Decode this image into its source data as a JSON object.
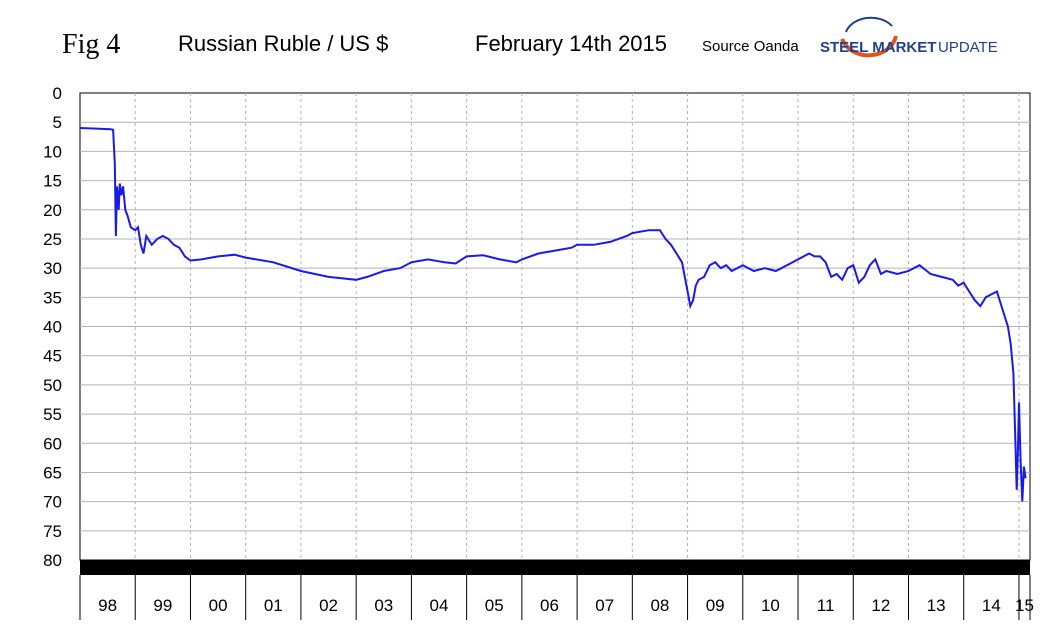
{
  "header": {
    "fig_label": "Fig 4",
    "title": "Russian Ruble / US $",
    "date": "February 14th 2015",
    "source": "Source Oanda",
    "logo": {
      "main": "STEEL MARKET",
      "sub": "UPDATE"
    }
  },
  "colors": {
    "series": "#1a1ae6",
    "grid": "#b4b4b4",
    "logo_blue": "#1f3f8f",
    "logo_orange": "#e0531c"
  },
  "chart_data": {
    "type": "line",
    "title": "Russian Ruble / US $",
    "xlabel": "",
    "ylabel": "",
    "y_inverted": true,
    "ylim": [
      0,
      80
    ],
    "yticks": [
      0,
      5,
      10,
      15,
      20,
      25,
      30,
      35,
      40,
      45,
      50,
      55,
      60,
      65,
      70,
      75,
      80
    ],
    "ytick_labels": [
      "0",
      "5",
      "10",
      "15",
      "20",
      "25",
      "30",
      "35",
      "40",
      "45",
      "50",
      "55",
      "60",
      "65",
      "70",
      "75",
      "80"
    ],
    "xlim": [
      1998,
      2015.2
    ],
    "xtick_labels": [
      "98",
      "99",
      "00",
      "01",
      "02",
      "03",
      "04",
      "05",
      "06",
      "07",
      "08",
      "09",
      "10",
      "11",
      "12",
      "13",
      "14",
      "15"
    ],
    "grid": true,
    "series": [
      {
        "name": "",
        "x": [
          1998.0,
          1998.3,
          1998.55,
          1998.6,
          1998.63,
          1998.65,
          1998.67,
          1998.7,
          1998.72,
          1998.75,
          1998.78,
          1998.82,
          1998.86,
          1998.92,
          1999.0,
          1999.05,
          1999.1,
          1999.15,
          1999.2,
          1999.3,
          1999.4,
          1999.5,
          1999.6,
          1999.7,
          1999.8,
          1999.9,
          2000.0,
          2000.2,
          2000.5,
          2000.8,
          2001.0,
          2001.5,
          2002.0,
          2002.5,
          2003.0,
          2003.2,
          2003.5,
          2003.8,
          2004.0,
          2004.3,
          2004.6,
          2004.8,
          2005.0,
          2005.3,
          2005.6,
          2005.9,
          2006.0,
          2006.3,
          2006.6,
          2006.9,
          2007.0,
          2007.3,
          2007.6,
          2007.9,
          2008.0,
          2008.3,
          2008.5,
          2008.6,
          2008.7,
          2008.8,
          2008.9,
          2009.0,
          2009.05,
          2009.1,
          2009.15,
          2009.2,
          2009.3,
          2009.4,
          2009.5,
          2009.6,
          2009.7,
          2009.8,
          2010.0,
          2010.2,
          2010.4,
          2010.6,
          2010.8,
          2011.0,
          2011.2,
          2011.3,
          2011.4,
          2011.5,
          2011.6,
          2011.7,
          2011.8,
          2011.9,
          2012.0,
          2012.1,
          2012.2,
          2012.3,
          2012.4,
          2012.5,
          2012.6,
          2012.8,
          2013.0,
          2013.2,
          2013.4,
          2013.6,
          2013.8,
          2013.9,
          2014.0,
          2014.1,
          2014.2,
          2014.3,
          2014.4,
          2014.5,
          2014.6,
          2014.7,
          2014.8,
          2014.85,
          2014.9,
          2014.93,
          2014.96,
          2014.98,
          2015.0,
          2015.03,
          2015.06,
          2015.09,
          2015.12
        ],
        "values": [
          6.0,
          6.1,
          6.2,
          6.3,
          12.0,
          24.5,
          16.0,
          20.0,
          15.5,
          17.5,
          16.0,
          20.0,
          21.0,
          23.0,
          23.5,
          23.0,
          26.0,
          27.5,
          24.5,
          26.0,
          25.0,
          24.5,
          25.0,
          26.0,
          26.5,
          28.0,
          28.7,
          28.5,
          28.0,
          27.7,
          28.2,
          29.0,
          30.5,
          31.5,
          32.0,
          31.5,
          30.5,
          30.0,
          29.0,
          28.5,
          29.0,
          29.2,
          28.0,
          27.8,
          28.5,
          29.0,
          28.5,
          27.5,
          27.0,
          26.5,
          26.0,
          26.0,
          25.5,
          24.5,
          24.0,
          23.5,
          23.5,
          25.0,
          26.0,
          27.5,
          29.0,
          34.0,
          36.5,
          35.5,
          33.0,
          32.0,
          31.5,
          29.5,
          29.0,
          30.0,
          29.5,
          30.5,
          29.5,
          30.5,
          30.0,
          30.5,
          29.5,
          28.5,
          27.5,
          28.0,
          28.0,
          29.0,
          31.5,
          31.0,
          32.0,
          30.0,
          29.5,
          32.5,
          31.5,
          29.5,
          28.5,
          31.0,
          30.5,
          31.0,
          30.5,
          29.5,
          31.0,
          31.5,
          32.0,
          33.0,
          32.5,
          34.0,
          35.5,
          36.5,
          35.0,
          34.5,
          34.0,
          37.0,
          40.0,
          43.0,
          48.0,
          58.0,
          68.0,
          62.0,
          53.0,
          63.0,
          70.0,
          64.0,
          66.0
        ]
      }
    ]
  }
}
